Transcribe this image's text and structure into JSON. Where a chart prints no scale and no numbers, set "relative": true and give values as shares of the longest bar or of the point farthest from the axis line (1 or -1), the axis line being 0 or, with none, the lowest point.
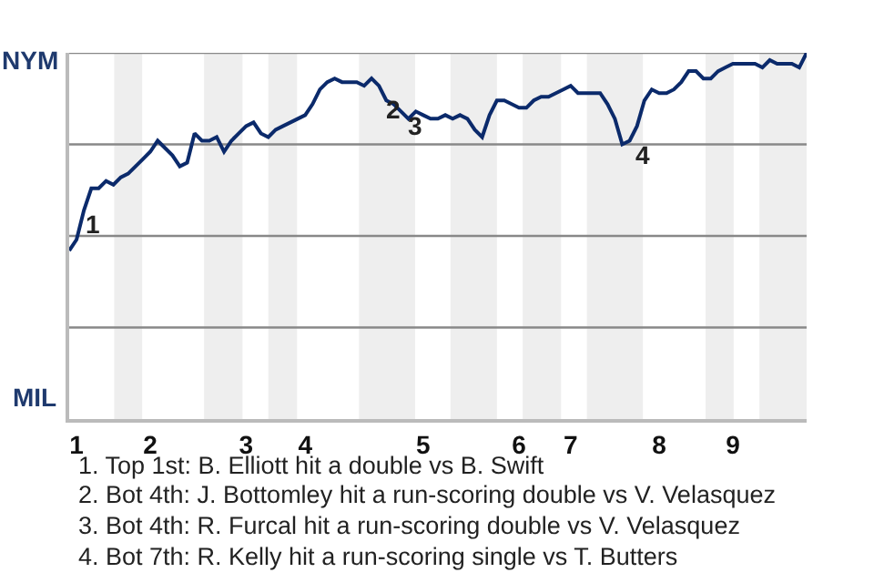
{
  "chart_data": {
    "type": "line",
    "relative": true,
    "categories": [
      null,
      "1",
      null,
      null,
      null,
      null,
      null,
      null,
      null,
      null,
      null,
      "2",
      null,
      null,
      null,
      null,
      null,
      null,
      null,
      null,
      null,
      null,
      null,
      null,
      "3",
      null,
      null,
      null,
      null,
      null,
      null,
      null,
      "4",
      null,
      null,
      null,
      null,
      null,
      null,
      null,
      null,
      null,
      null,
      null,
      null,
      null,
      null,
      null,
      "5",
      null,
      null,
      null,
      null,
      null,
      null,
      null,
      null,
      null,
      null,
      null,
      null,
      "6",
      null,
      null,
      null,
      null,
      null,
      null,
      "7",
      null,
      null,
      null,
      null,
      null,
      null,
      null,
      null,
      null,
      null,
      null,
      "8",
      null,
      null,
      null,
      null,
      null,
      null,
      null,
      null,
      null,
      "9",
      null,
      null,
      null,
      null,
      null,
      null,
      null,
      null,
      null,
      null
    ],
    "series": [
      {
        "color": "#0b2a6b",
        "values": [
          0.46,
          0.49,
          0.57,
          0.63,
          0.63,
          0.65,
          0.64,
          0.66,
          0.67,
          0.69,
          0.71,
          0.73,
          0.76,
          0.74,
          0.72,
          0.69,
          0.7,
          0.78,
          0.76,
          0.76,
          0.77,
          0.73,
          0.76,
          0.78,
          0.8,
          0.81,
          0.78,
          0.77,
          0.79,
          0.8,
          0.81,
          0.82,
          0.83,
          0.86,
          0.9,
          0.92,
          0.93,
          0.92,
          0.92,
          0.92,
          0.91,
          0.93,
          0.91,
          0.87,
          0.86,
          0.84,
          0.82,
          0.84,
          0.83,
          0.82,
          0.82,
          0.83,
          0.82,
          0.83,
          0.82,
          0.79,
          0.77,
          0.83,
          0.87,
          0.87,
          0.86,
          0.85,
          0.85,
          0.87,
          0.88,
          0.88,
          0.89,
          0.9,
          0.91,
          0.89,
          0.89,
          0.89,
          0.89,
          0.86,
          0.82,
          0.75,
          0.76,
          0.8,
          0.87,
          0.9,
          0.89,
          0.89,
          0.9,
          0.92,
          0.95,
          0.95,
          0.93,
          0.93,
          0.95,
          0.96,
          0.97,
          0.97,
          0.97,
          0.97,
          0.96,
          0.98,
          0.97,
          0.97,
          0.97,
          0.96,
          1
        ]
      }
    ],
    "grid": false,
    "marker": "none",
    "line_style": "solid",
    "ref_lines": [
      {
        "axis": "y",
        "value": 0.25,
        "color": "#888888"
      },
      {
        "axis": "y",
        "value": 0.5,
        "color": "#888888"
      },
      {
        "axis": "y",
        "value": 0.75,
        "color": "#888888"
      },
      {
        "axis": "y",
        "value": 1,
        "color": "#888888"
      }
    ],
    "annotations": [
      "NYM",
      "MIL",
      "1",
      "2",
      "3",
      "4",
      "1. Top 1st: B. Elliott hit a double vs B. Swift",
      "2. Bot 4th: J. Bottomley hit a run-scoring double vs V. Velasquez",
      "3. Bot 4th: R. Furcal hit a run-scoring double vs V. Velasquez",
      "4. Bot 7th: R. Kelly hit a run-scoring single vs T. Butters"
    ]
  }
}
